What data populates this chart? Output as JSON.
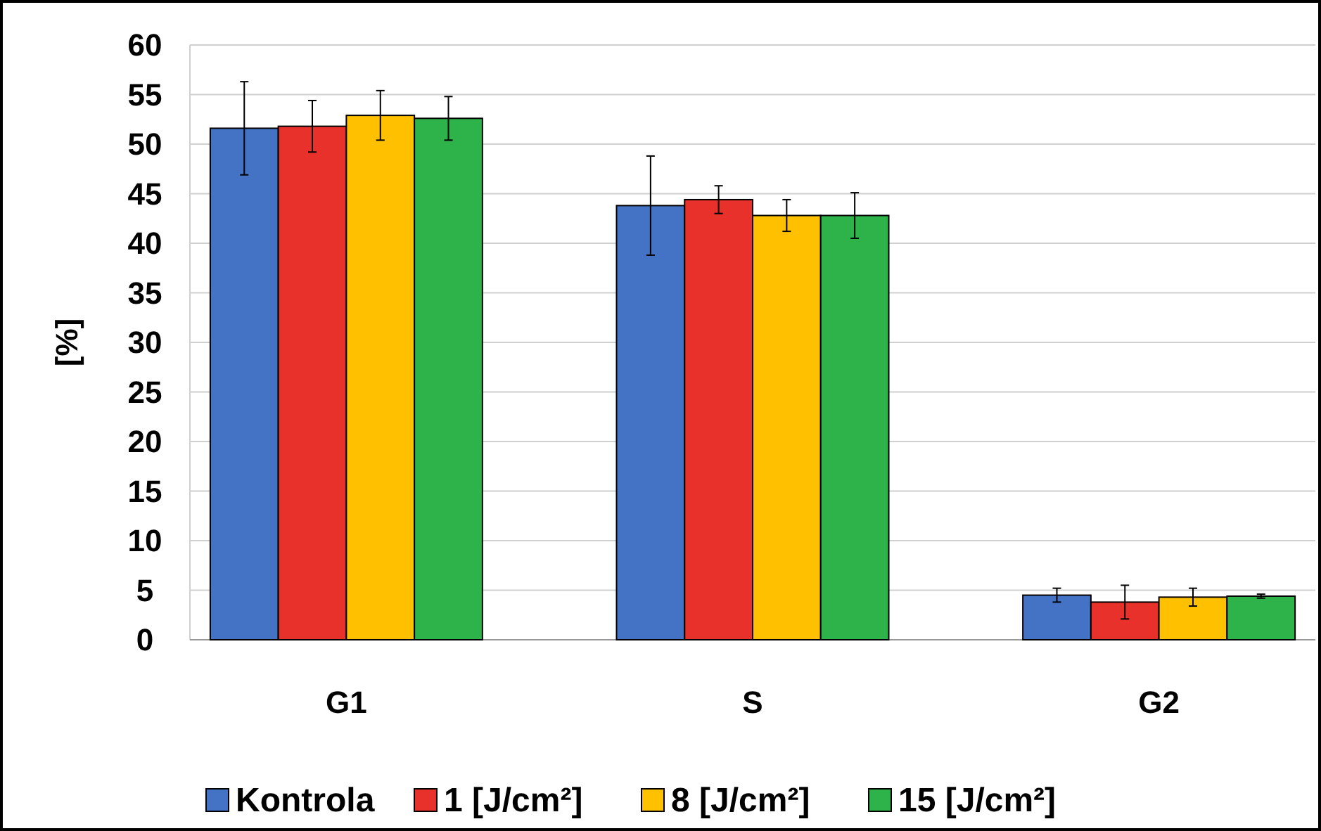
{
  "chart_data": {
    "type": "bar",
    "ylabel": "[%]",
    "categories": [
      "G1",
      "S",
      "G2"
    ],
    "series": [
      {
        "name": "Kontrola",
        "color": "#4472c4",
        "values": [
          51.6,
          43.8,
          4.5
        ],
        "errors": [
          4.7,
          5,
          0.7
        ]
      },
      {
        "name": "1 [J/cm²]",
        "color": "#e8312a",
        "values": [
          51.8,
          44.4,
          3.8
        ],
        "errors": [
          2.6,
          1.4,
          1.7
        ]
      },
      {
        "name": "8 [J/cm²]",
        "color": "#ffc000",
        "values": [
          52.9,
          42.8,
          4.3
        ],
        "errors": [
          2.5,
          1.6,
          0.9
        ]
      },
      {
        "name": "15 [J/cm²]",
        "color": "#2db34a",
        "values": [
          52.6,
          42.8,
          4.4
        ],
        "errors": [
          2.2,
          2.3,
          0.2
        ]
      }
    ],
    "ylim": [
      0,
      60
    ],
    "yticks": [
      0,
      5,
      10,
      15,
      20,
      25,
      30,
      35,
      40,
      45,
      50,
      55,
      60
    ],
    "grid": "y",
    "legend": "bottom"
  }
}
